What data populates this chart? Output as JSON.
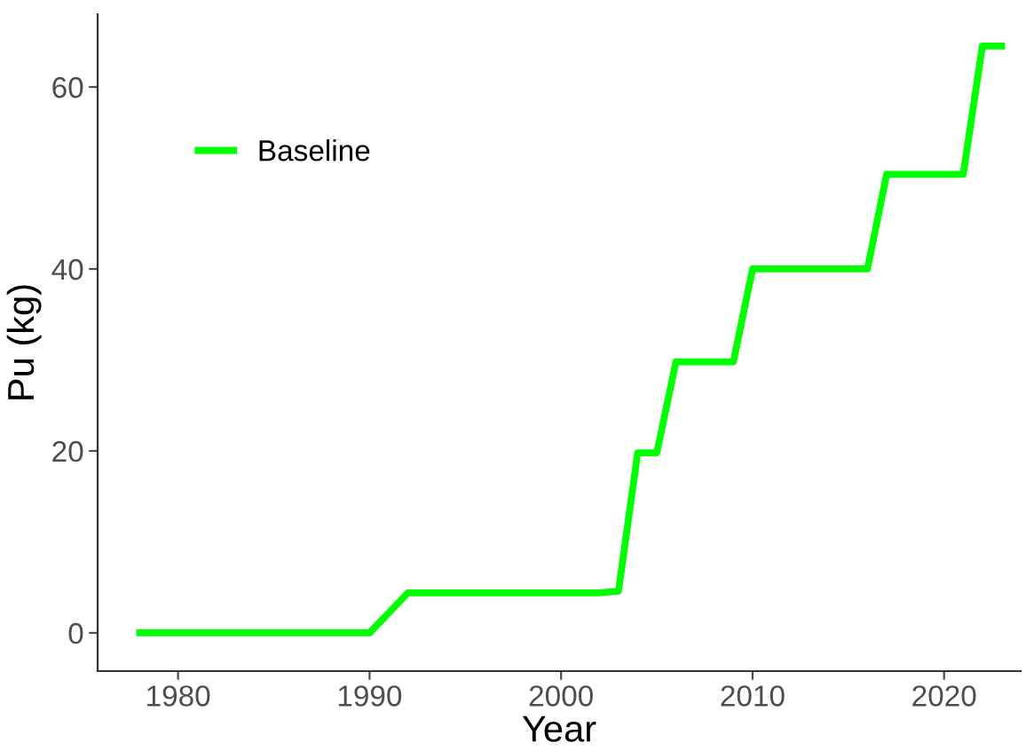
{
  "chart_data": {
    "type": "line",
    "xlabel": "Year",
    "ylabel": "Pu (kg)",
    "x": [
      1978,
      1990,
      1992,
      2002,
      2003,
      2004,
      2005,
      2006,
      2009,
      2010,
      2016,
      2017,
      2021,
      2022,
      2023
    ],
    "series": [
      {
        "name": "Baseline",
        "color": "#00ff00",
        "values": [
          0,
          0,
          4.4,
          4.4,
          4.6,
          19.8,
          19.8,
          29.8,
          29.8,
          40.0,
          40.0,
          50.4,
          50.4,
          64.5,
          64.5
        ]
      }
    ],
    "xlim": [
      1975.8,
      2024
    ],
    "ylim": [
      -4.2,
      68
    ],
    "xticks": [
      1980,
      1990,
      2000,
      2010,
      2020
    ],
    "yticks": [
      0,
      20,
      40,
      60
    ],
    "grid": false,
    "legend": "top left",
    "marker": "none",
    "line_style": "solid"
  }
}
